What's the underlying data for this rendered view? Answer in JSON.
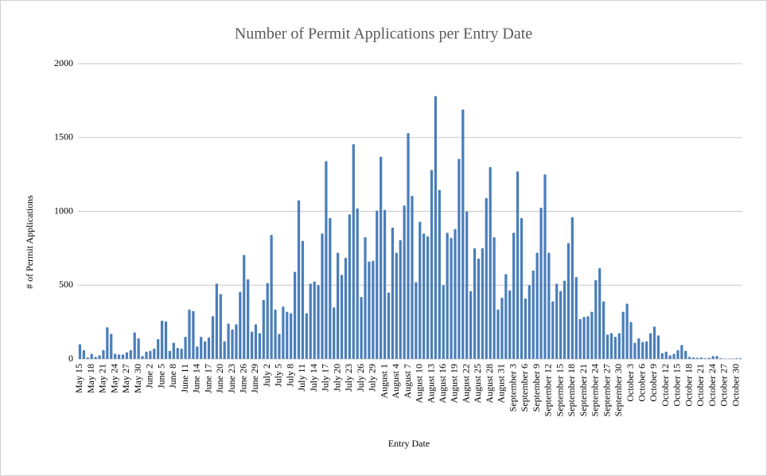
{
  "chart_data": {
    "type": "bar",
    "title": "Number of Permit Applications per Entry Date",
    "xlabel": "Entry Date",
    "ylabel": "# of Permit Applications",
    "color": "#4a7ebb",
    "grid": true,
    "ylim": [
      0,
      2000
    ],
    "yticks": [
      0,
      500,
      1000,
      1500,
      2000
    ],
    "categories": [
      "May 15",
      null,
      null,
      "May 18",
      null,
      null,
      "May 21",
      null,
      null,
      "May 24",
      null,
      null,
      "May 27",
      null,
      null,
      "May 30",
      null,
      null,
      "June 2",
      null,
      null,
      "June 5",
      null,
      null,
      "June 8",
      null,
      null,
      "June 11",
      null,
      null,
      "June 14",
      null,
      null,
      "June 17",
      null,
      null,
      "June 20",
      null,
      null,
      "June 23",
      null,
      null,
      "June 26",
      null,
      null,
      "June 29",
      null,
      null,
      "July 2",
      null,
      null,
      "July 5",
      null,
      null,
      "July 8",
      null,
      null,
      "July 11",
      null,
      null,
      "July 14",
      null,
      null,
      "July 17",
      null,
      null,
      "July 20",
      null,
      null,
      "July 23",
      null,
      null,
      "July 26",
      null,
      null,
      "July 29",
      null,
      null,
      "August 1",
      null,
      null,
      "August 4",
      null,
      null,
      "August 7",
      null,
      null,
      "August 10",
      null,
      null,
      "August 13",
      null,
      null,
      "August 16",
      null,
      null,
      "August 19",
      null,
      null,
      "August 22",
      null,
      null,
      "August 25",
      null,
      null,
      "August 28",
      null,
      null,
      "August 31",
      null,
      null,
      "September 3",
      null,
      null,
      "September 6",
      null,
      null,
      "September 9",
      null,
      null,
      "September 12",
      null,
      null,
      "September 15",
      null,
      null,
      "September 18",
      null,
      null,
      "September 21",
      null,
      null,
      "September 24",
      null,
      null,
      "September 27",
      null,
      null,
      "September 30",
      null,
      null,
      "October 3",
      null,
      null,
      "October 6",
      null,
      null,
      "October 9",
      null,
      null,
      "October 12",
      null,
      null,
      "October 15",
      null,
      null,
      "October 18",
      null,
      null,
      "October 21",
      null,
      null,
      "October 24",
      null,
      null,
      "October 27",
      null,
      null,
      "October 30",
      null
    ],
    "values": [
      100,
      60,
      10,
      35,
      15,
      25,
      60,
      215,
      170,
      35,
      30,
      30,
      45,
      60,
      180,
      140,
      20,
      50,
      55,
      70,
      135,
      260,
      255,
      55,
      110,
      75,
      70,
      150,
      335,
      325,
      85,
      150,
      120,
      145,
      290,
      510,
      440,
      120,
      240,
      200,
      235,
      455,
      705,
      540,
      185,
      235,
      175,
      400,
      515,
      840,
      335,
      170,
      355,
      320,
      310,
      590,
      1075,
      800,
      310,
      510,
      525,
      500,
      850,
      1340,
      955,
      350,
      720,
      570,
      685,
      980,
      1455,
      1020,
      420,
      825,
      660,
      665,
      1005,
      1370,
      1010,
      450,
      890,
      720,
      805,
      1040,
      1530,
      1105,
      520,
      930,
      850,
      830,
      1280,
      1780,
      1145,
      500,
      855,
      820,
      880,
      1355,
      1690,
      1000,
      460,
      750,
      680,
      750,
      1090,
      1300,
      825,
      335,
      415,
      575,
      465,
      855,
      1270,
      955,
      410,
      500,
      600,
      720,
      1025,
      1250,
      720,
      390,
      510,
      460,
      530,
      785,
      960,
      555,
      270,
      285,
      290,
      320,
      535,
      615,
      390,
      165,
      175,
      150,
      175,
      320,
      375,
      250,
      110,
      140,
      115,
      120,
      175,
      220,
      160,
      40,
      50,
      25,
      35,
      60,
      95,
      55,
      15,
      10,
      8,
      10,
      5,
      8,
      20,
      20,
      5,
      3,
      3,
      3,
      5,
      5
    ]
  }
}
